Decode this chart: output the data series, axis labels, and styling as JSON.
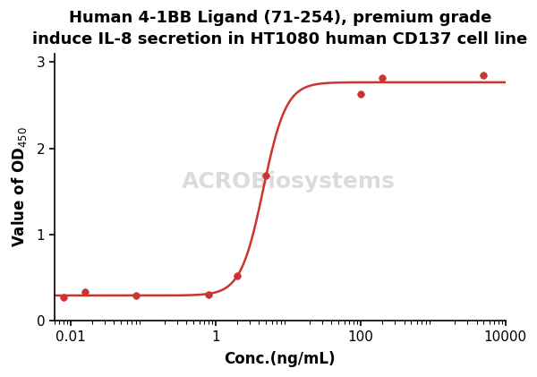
{
  "title_line1": "Human 4-1BB Ligand (71-254), premium grade",
  "title_line2": "induce IL-8 secretion in HT1080 human CD137 cell line",
  "xlabel": "Conc.(ng/mL)",
  "x_data": [
    0.008,
    0.016,
    0.08,
    0.8,
    2,
    5,
    100,
    200,
    5000
  ],
  "y_data": [
    0.27,
    0.33,
    0.29,
    0.3,
    0.52,
    1.68,
    2.63,
    2.82,
    2.85
  ],
  "line_color": "#cc3333",
  "marker_color": "#cc3333",
  "marker_size": 5.5,
  "line_width": 1.8,
  "xlim": [
    0.006,
    10000
  ],
  "ylim": [
    0,
    3.1
  ],
  "yticks": [
    0,
    1,
    2,
    3
  ],
  "xtick_labels": [
    "0.01",
    "1",
    "100",
    "10000"
  ],
  "xtick_positions": [
    0.01,
    1,
    100,
    10000
  ],
  "title_fontsize": 13,
  "axis_label_fontsize": 12,
  "tick_fontsize": 11,
  "background_color": "#ffffff",
  "watermark": "ACROBiosystems"
}
